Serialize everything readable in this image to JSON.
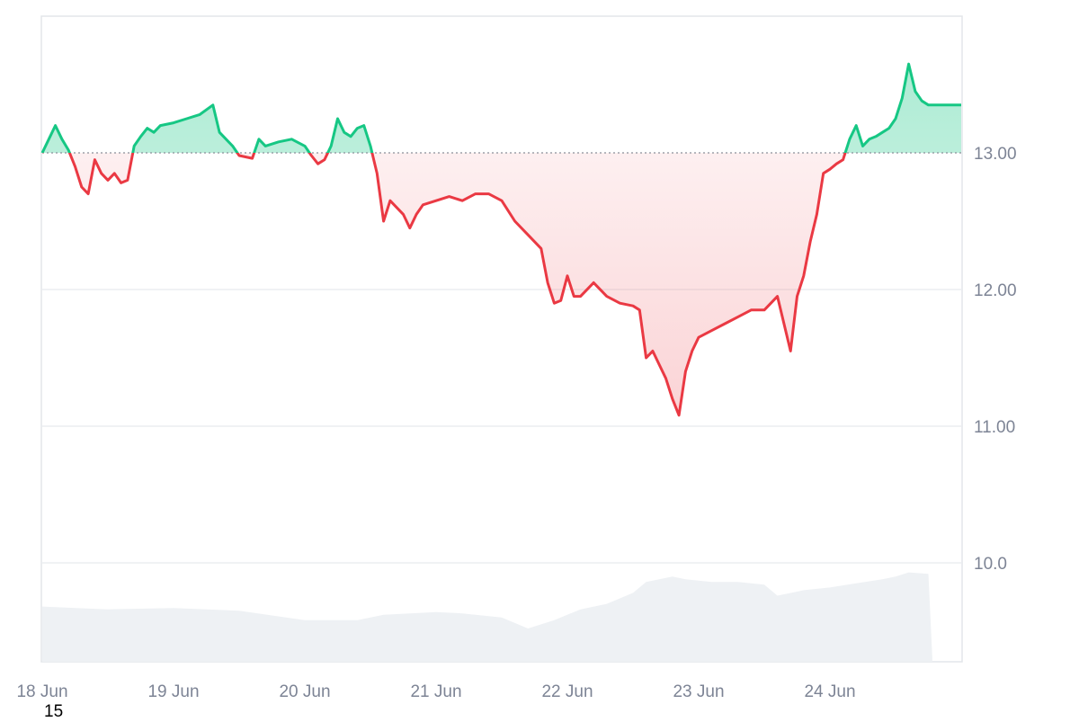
{
  "chart_data": {
    "type": "area",
    "baseline": 13.0,
    "ylim": [
      9.3,
      14.0
    ],
    "y_ticks": [
      {
        "value": 13.0,
        "label": "13.00"
      },
      {
        "value": 12.0,
        "label": "12.00"
      },
      {
        "value": 11.0,
        "label": "11.00"
      },
      {
        "value": 10.0,
        "label": "10.0"
      }
    ],
    "x_ticks": [
      {
        "x": 0,
        "label": "18 Jun"
      },
      {
        "x": 1,
        "label": "19 Jun"
      },
      {
        "x": 2,
        "label": "20 Jun"
      },
      {
        "x": 3,
        "label": "21 Jun"
      },
      {
        "x": 4,
        "label": "22 Jun"
      },
      {
        "x": 5,
        "label": "23 Jun"
      },
      {
        "x": 6,
        "label": "24 Jun"
      }
    ],
    "series": [
      {
        "values_x_unit": "days since 18 Jun",
        "points": [
          [
            0.0,
            13.0
          ],
          [
            0.05,
            13.1
          ],
          [
            0.1,
            13.2
          ],
          [
            0.15,
            13.1
          ],
          [
            0.2,
            13.02
          ],
          [
            0.25,
            12.9
          ],
          [
            0.3,
            12.75
          ],
          [
            0.35,
            12.7
          ],
          [
            0.4,
            12.95
          ],
          [
            0.45,
            12.85
          ],
          [
            0.5,
            12.8
          ],
          [
            0.55,
            12.85
          ],
          [
            0.6,
            12.78
          ],
          [
            0.65,
            12.8
          ],
          [
            0.7,
            13.05
          ],
          [
            0.75,
            13.12
          ],
          [
            0.8,
            13.18
          ],
          [
            0.85,
            13.15
          ],
          [
            0.9,
            13.2
          ],
          [
            1.0,
            13.22
          ],
          [
            1.1,
            13.25
          ],
          [
            1.2,
            13.28
          ],
          [
            1.3,
            13.35
          ],
          [
            1.35,
            13.15
          ],
          [
            1.45,
            13.05
          ],
          [
            1.5,
            12.98
          ],
          [
            1.6,
            12.96
          ],
          [
            1.65,
            13.1
          ],
          [
            1.7,
            13.05
          ],
          [
            1.8,
            13.08
          ],
          [
            1.9,
            13.1
          ],
          [
            2.0,
            13.05
          ],
          [
            2.05,
            12.98
          ],
          [
            2.1,
            12.92
          ],
          [
            2.15,
            12.95
          ],
          [
            2.2,
            13.05
          ],
          [
            2.25,
            13.25
          ],
          [
            2.3,
            13.15
          ],
          [
            2.35,
            13.12
          ],
          [
            2.4,
            13.18
          ],
          [
            2.45,
            13.2
          ],
          [
            2.5,
            13.05
          ],
          [
            2.55,
            12.85
          ],
          [
            2.6,
            12.5
          ],
          [
            2.65,
            12.65
          ],
          [
            2.7,
            12.6
          ],
          [
            2.75,
            12.55
          ],
          [
            2.8,
            12.45
          ],
          [
            2.85,
            12.55
          ],
          [
            2.9,
            12.62
          ],
          [
            3.0,
            12.65
          ],
          [
            3.1,
            12.68
          ],
          [
            3.2,
            12.65
          ],
          [
            3.3,
            12.7
          ],
          [
            3.4,
            12.7
          ],
          [
            3.5,
            12.65
          ],
          [
            3.6,
            12.5
          ],
          [
            3.7,
            12.4
          ],
          [
            3.8,
            12.3
          ],
          [
            3.85,
            12.05
          ],
          [
            3.9,
            11.9
          ],
          [
            3.95,
            11.92
          ],
          [
            4.0,
            12.1
          ],
          [
            4.05,
            11.95
          ],
          [
            4.1,
            11.95
          ],
          [
            4.2,
            12.05
          ],
          [
            4.3,
            11.95
          ],
          [
            4.4,
            11.9
          ],
          [
            4.5,
            11.88
          ],
          [
            4.55,
            11.85
          ],
          [
            4.6,
            11.5
          ],
          [
            4.65,
            11.55
          ],
          [
            4.7,
            11.45
          ],
          [
            4.75,
            11.35
          ],
          [
            4.8,
            11.2
          ],
          [
            4.85,
            11.08
          ],
          [
            4.9,
            11.4
          ],
          [
            4.95,
            11.55
          ],
          [
            5.0,
            11.65
          ],
          [
            5.1,
            11.7
          ],
          [
            5.2,
            11.75
          ],
          [
            5.3,
            11.8
          ],
          [
            5.4,
            11.85
          ],
          [
            5.5,
            11.85
          ],
          [
            5.55,
            11.9
          ],
          [
            5.6,
            11.95
          ],
          [
            5.65,
            11.75
          ],
          [
            5.7,
            11.55
          ],
          [
            5.75,
            11.95
          ],
          [
            5.8,
            12.1
          ],
          [
            5.85,
            12.35
          ],
          [
            5.9,
            12.55
          ],
          [
            5.95,
            12.85
          ],
          [
            6.0,
            12.88
          ],
          [
            6.05,
            12.92
          ],
          [
            6.1,
            12.95
          ],
          [
            6.15,
            13.1
          ],
          [
            6.2,
            13.2
          ],
          [
            6.25,
            13.05
          ],
          [
            6.3,
            13.1
          ],
          [
            6.35,
            13.12
          ],
          [
            6.4,
            13.15
          ],
          [
            6.45,
            13.18
          ],
          [
            6.5,
            13.25
          ],
          [
            6.55,
            13.4
          ],
          [
            6.6,
            13.65
          ],
          [
            6.65,
            13.45
          ],
          [
            6.7,
            13.38
          ],
          [
            6.75,
            13.35
          ],
          [
            6.8,
            13.35
          ],
          [
            6.9,
            13.35
          ],
          [
            7.0,
            13.35
          ]
        ]
      }
    ],
    "volume": [
      [
        0.0,
        9.68
      ],
      [
        0.5,
        9.66
      ],
      [
        1.0,
        9.67
      ],
      [
        1.5,
        9.65
      ],
      [
        2.0,
        9.58
      ],
      [
        2.4,
        9.58
      ],
      [
        2.6,
        9.62
      ],
      [
        3.0,
        9.64
      ],
      [
        3.2,
        9.63
      ],
      [
        3.5,
        9.6
      ],
      [
        3.7,
        9.52
      ],
      [
        3.9,
        9.58
      ],
      [
        4.1,
        9.66
      ],
      [
        4.3,
        9.7
      ],
      [
        4.5,
        9.78
      ],
      [
        4.6,
        9.86
      ],
      [
        4.8,
        9.9
      ],
      [
        4.9,
        9.88
      ],
      [
        5.1,
        9.86
      ],
      [
        5.3,
        9.86
      ],
      [
        5.5,
        9.84
      ],
      [
        5.6,
        9.76
      ],
      [
        5.8,
        9.8
      ],
      [
        6.0,
        9.82
      ],
      [
        6.2,
        9.85
      ],
      [
        6.4,
        9.88
      ],
      [
        6.5,
        9.9
      ],
      [
        6.6,
        9.93
      ],
      [
        6.75,
        9.92
      ],
      [
        6.78,
        9.3
      ]
    ],
    "colors": {
      "up_line": "#16c784",
      "down_line": "#ea3943",
      "up_fill": "#16c784",
      "down_fill": "#ea3943",
      "volume_fill": "#eef1f4",
      "grid": "#eceef1",
      "baseline": "#8a8f99",
      "axis_text": "#7d8495"
    }
  },
  "corner_label": "15"
}
